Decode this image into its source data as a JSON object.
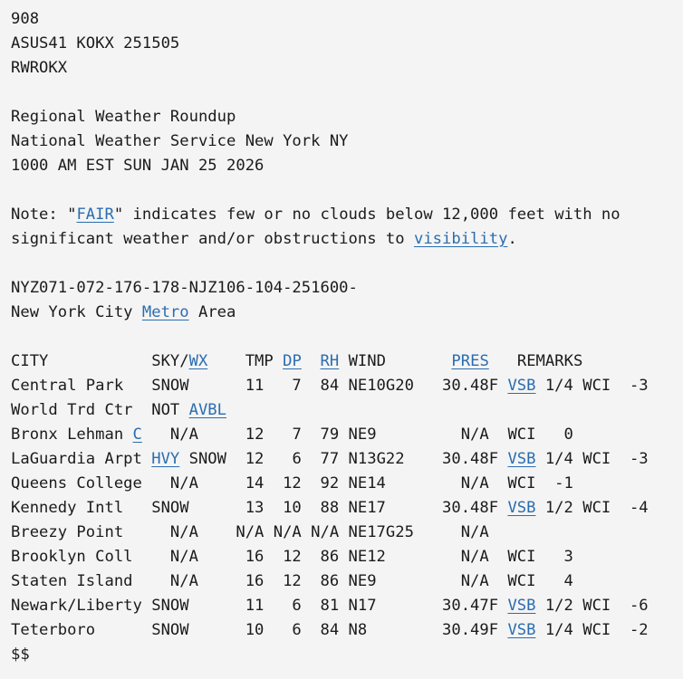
{
  "lines": [
    [
      {
        "t": "908"
      }
    ],
    [
      {
        "t": "ASUS41 KOKX 251505"
      }
    ],
    [
      {
        "t": "RWROKX"
      }
    ],
    [],
    [
      {
        "t": "Regional Weather Roundup"
      }
    ],
    [
      {
        "t": "National Weather Service New York NY"
      }
    ],
    [
      {
        "t": "1000 AM EST SUN JAN 25 2026"
      }
    ],
    [],
    [
      {
        "t": "Note: \""
      },
      {
        "t": "FAIR",
        "link": true
      },
      {
        "t": "\" indicates few or no clouds below 12,000 feet with no"
      }
    ],
    [
      {
        "t": "significant weather and/or obstructions to "
      },
      {
        "t": "visibility",
        "link": true
      },
      {
        "t": "."
      }
    ],
    [],
    [
      {
        "t": "NYZ071-072-176-178-NJZ106-104-251600-"
      }
    ],
    [
      {
        "t": "New York City "
      },
      {
        "t": "Metro",
        "link": true
      },
      {
        "t": " Area"
      }
    ],
    [],
    [
      {
        "t": "CITY           SKY/"
      },
      {
        "t": "WX",
        "link": true
      },
      {
        "t": "    TMP "
      },
      {
        "t": "DP",
        "link": true
      },
      {
        "t": "  "
      },
      {
        "t": "RH",
        "link": true
      },
      {
        "t": " WIND       "
      },
      {
        "t": "PRES",
        "link": true
      },
      {
        "t": "   REMARKS"
      }
    ],
    [
      {
        "t": "Central Park   SNOW      11   7  84 NE10G20   30.48F "
      },
      {
        "t": "VSB",
        "link": true
      },
      {
        "t": " 1/4 WCI  -3"
      }
    ],
    [
      {
        "t": "World Trd Ctr  NOT "
      },
      {
        "t": "AVBL",
        "link": true
      }
    ],
    [
      {
        "t": "Bronx Lehman "
      },
      {
        "t": "C",
        "link": true
      },
      {
        "t": "   N/A     12   7  79 NE9         N/A  WCI   0"
      }
    ],
    [
      {
        "t": "LaGuardia Arpt "
      },
      {
        "t": "HVY",
        "link": true
      },
      {
        "t": " SNOW  12   6  77 N13G22    30.48F "
      },
      {
        "t": "VSB",
        "link": true
      },
      {
        "t": " 1/4 WCI  -3"
      }
    ],
    [
      {
        "t": "Queens College   N/A     14  12  92 NE14        N/A  WCI  -1"
      }
    ],
    [
      {
        "t": "Kennedy Intl   SNOW      13  10  88 NE17      30.48F "
      },
      {
        "t": "VSB",
        "link": true
      },
      {
        "t": " 1/2 WCI  -4"
      }
    ],
    [
      {
        "t": "Breezy Point     N/A    N/A N/A N/A NE17G25     N/A"
      }
    ],
    [
      {
        "t": "Brooklyn Coll    N/A     16  12  86 NE12        N/A  WCI   3"
      }
    ],
    [
      {
        "t": "Staten Island    N/A     16  12  86 NE9         N/A  WCI   4"
      }
    ],
    [
      {
        "t": "Newark/Liberty SNOW      11   6  81 N17       30.47F "
      },
      {
        "t": "VSB",
        "link": true
      },
      {
        "t": " 1/2 WCI  -6"
      }
    ],
    [
      {
        "t": "Teterboro      SNOW      10   6  84 N8        30.49F "
      },
      {
        "t": "VSB",
        "link": true
      },
      {
        "t": " 1/4 WCI  -2"
      }
    ],
    [
      {
        "t": "$$"
      }
    ]
  ],
  "colors": {
    "link": "#2a6db0",
    "text": "#1b1b1b",
    "background": "#f4f4f4"
  }
}
